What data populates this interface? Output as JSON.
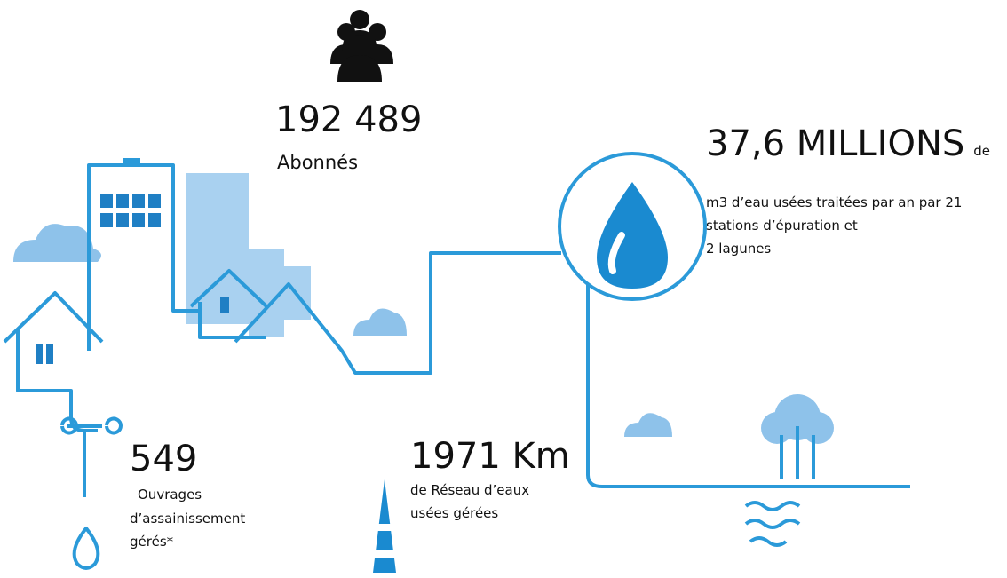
{
  "stats": [
    {
      "value": "192 489",
      "lines": [
        "Abonnés"
      ]
    },
    {
      "value": "37,6 MILLIONS",
      "suffix": "de",
      "lines": [
        "m3 d’eau usées traitées par  an par 21",
        "stations d’épuration et",
        "2 lagunes"
      ]
    },
    {
      "value": "549",
      "lines": [
        "Ouvrages",
        "d’assainissement",
        "gérés*"
      ]
    },
    {
      "value": "1971 Km",
      "lines": [
        "de Réseau d’eaux",
        "usées gérées"
      ]
    }
  ]
}
